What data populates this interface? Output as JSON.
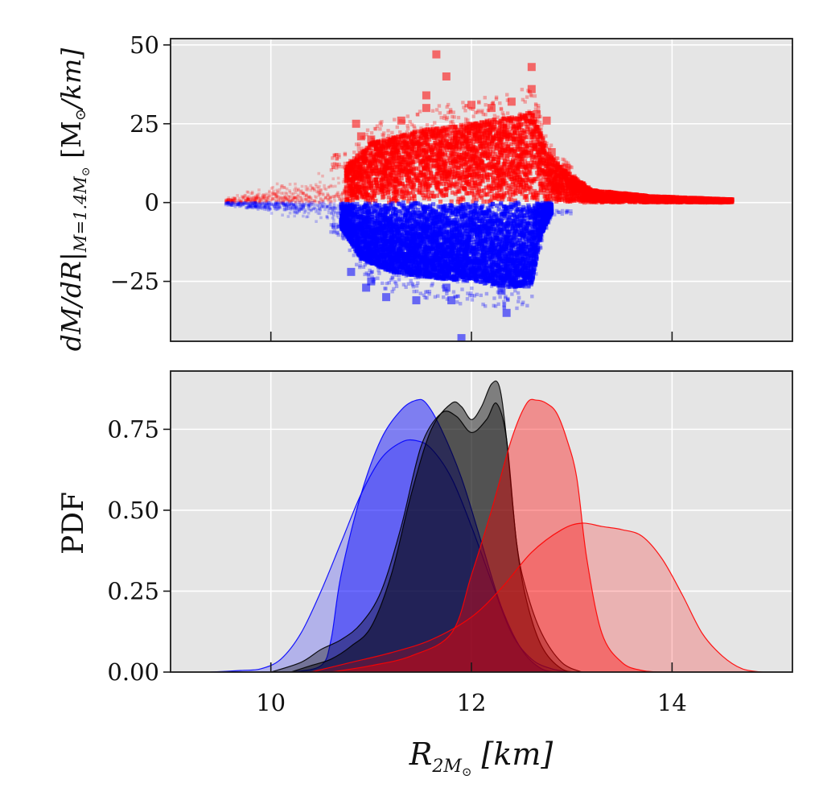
{
  "figure": {
    "panel_bg": "#e5e5e5",
    "red": "#ff0000",
    "blue": "#0000ff",
    "black": "#000000"
  },
  "chart_data": [
    {
      "type": "scatter",
      "title": "",
      "xlabel": "",
      "ylabel_main": "dM/dR",
      "ylabel_sub": "M=1.4M",
      "ylabel_unit": "[M",
      "ylabel_unit_tail": "/km]",
      "xlim": [
        9.0,
        15.2
      ],
      "ylim": [
        -44,
        52
      ],
      "xticks": [
        10,
        12,
        14
      ],
      "yticks": [
        -25,
        0,
        25,
        50
      ],
      "ytick_labels": [
        "−25",
        "0",
        "25",
        "50"
      ],
      "grid": true,
      "series": [
        {
          "color": "#ff0000",
          "core_band": [
            {
              "x": 10.75,
              "y_max": 12
            },
            {
              "x": 11.0,
              "y_max": 19
            },
            {
              "x": 11.5,
              "y_max": 23
            },
            {
              "x": 12.0,
              "y_max": 25
            },
            {
              "x": 12.5,
              "y_max": 28
            },
            {
              "x": 12.6,
              "y_max": 29
            },
            {
              "x": 12.8,
              "y_max": 14
            },
            {
              "x": 13.2,
              "y_max": 4
            },
            {
              "x": 13.8,
              "y_max": 2
            },
            {
              "x": 14.6,
              "y_max": 1
            }
          ],
          "outliers": [
            {
              "x": 10.85,
              "y": 25
            },
            {
              "x": 11.0,
              "y": 20
            },
            {
              "x": 11.3,
              "y": 26
            },
            {
              "x": 11.55,
              "y": 34
            },
            {
              "x": 11.65,
              "y": 47
            },
            {
              "x": 11.75,
              "y": 40
            },
            {
              "x": 11.55,
              "y": 30
            },
            {
              "x": 12.0,
              "y": 31
            },
            {
              "x": 12.2,
              "y": 30
            },
            {
              "x": 12.4,
              "y": 32
            },
            {
              "x": 12.6,
              "y": 43
            },
            {
              "x": 12.6,
              "y": 36
            },
            {
              "x": 12.65,
              "y": 28
            },
            {
              "x": 12.75,
              "y": 26
            },
            {
              "x": 10.9,
              "y": 21
            },
            {
              "x": 12.8,
              "y": 16
            },
            {
              "x": 12.95,
              "y": 11
            }
          ]
        },
        {
          "color": "#0000ff",
          "core_band": [
            {
              "x": 10.7,
              "y_min": -8
            },
            {
              "x": 10.9,
              "y_min": -18
            },
            {
              "x": 11.2,
              "y_min": -22
            },
            {
              "x": 11.6,
              "y_min": -24
            },
            {
              "x": 12.0,
              "y_min": -25
            },
            {
              "x": 12.4,
              "y_min": -27
            },
            {
              "x": 12.6,
              "y_min": -26
            },
            {
              "x": 12.7,
              "y_min": -10
            },
            {
              "x": 12.8,
              "y_min": -3
            }
          ],
          "outliers": [
            {
              "x": 10.8,
              "y": -22
            },
            {
              "x": 11.0,
              "y": -25
            },
            {
              "x": 11.15,
              "y": -30
            },
            {
              "x": 11.45,
              "y": -31
            },
            {
              "x": 11.75,
              "y": -27
            },
            {
              "x": 11.8,
              "y": -31
            },
            {
              "x": 11.9,
              "y": -43
            },
            {
              "x": 12.35,
              "y": -35
            },
            {
              "x": 12.3,
              "y": -28
            },
            {
              "x": 12.55,
              "y": -26
            },
            {
              "x": 10.95,
              "y": -27
            }
          ]
        }
      ]
    },
    {
      "type": "area",
      "title": "",
      "xlabel_main": "R",
      "xlabel_sub": "2M",
      "xlabel_unit": "[km]",
      "ylabel": "PDF",
      "xlim": [
        9.0,
        15.2
      ],
      "ylim": [
        0.0,
        0.93
      ],
      "xticks": [
        10,
        12,
        14
      ],
      "yticks": [
        0.0,
        0.25,
        0.5,
        0.75
      ],
      "ytick_labels": [
        "0.00",
        "0.25",
        "0.50",
        "0.75"
      ],
      "grid": true,
      "series": [
        {
          "color": "#0000ff",
          "fill_opacity": 0.22,
          "x": [
            9.4,
            9.7,
            9.9,
            10.1,
            10.3,
            10.5,
            10.7,
            10.9,
            11.1,
            11.3,
            11.45,
            11.6,
            11.8,
            12.0,
            12.2,
            12.4,
            12.6,
            12.8,
            13.0
          ],
          "y": [
            0.0,
            0.005,
            0.01,
            0.04,
            0.12,
            0.25,
            0.4,
            0.55,
            0.66,
            0.71,
            0.715,
            0.69,
            0.6,
            0.45,
            0.28,
            0.12,
            0.04,
            0.01,
            0.0
          ]
        },
        {
          "color": "#0000ff",
          "fill_opacity": 0.45,
          "x": [
            10.2,
            10.5,
            10.6,
            10.7,
            10.9,
            11.1,
            11.3,
            11.45,
            11.55,
            11.7,
            11.9,
            12.1,
            12.3,
            12.5,
            12.7,
            12.9
          ],
          "y": [
            0.0,
            0.02,
            0.1,
            0.3,
            0.55,
            0.72,
            0.81,
            0.84,
            0.83,
            0.75,
            0.6,
            0.4,
            0.2,
            0.07,
            0.01,
            0.0
          ]
        },
        {
          "color": "#000000",
          "fill_opacity": 0.35,
          "x": [
            10.0,
            10.3,
            10.5,
            10.7,
            10.9,
            11.1,
            11.3,
            11.5,
            11.7,
            11.85,
            12.0,
            12.15,
            12.25,
            12.35,
            12.45,
            12.55,
            12.7,
            12.9,
            13.1
          ],
          "y": [
            0.0,
            0.03,
            0.07,
            0.1,
            0.15,
            0.25,
            0.45,
            0.7,
            0.8,
            0.79,
            0.74,
            0.78,
            0.83,
            0.72,
            0.4,
            0.25,
            0.12,
            0.03,
            0.0
          ]
        },
        {
          "color": "#000000",
          "fill_opacity": 0.45,
          "x": [
            10.2,
            10.4,
            10.6,
            10.8,
            11.0,
            11.2,
            11.4,
            11.6,
            11.8,
            11.9,
            12.0,
            12.1,
            12.2,
            12.28,
            12.35,
            12.45,
            12.55,
            12.7,
            12.9,
            13.1
          ],
          "y": [
            0.0,
            0.02,
            0.04,
            0.08,
            0.14,
            0.3,
            0.55,
            0.75,
            0.83,
            0.82,
            0.78,
            0.82,
            0.89,
            0.88,
            0.72,
            0.4,
            0.22,
            0.08,
            0.01,
            0.0
          ]
        },
        {
          "color": "#ff0000",
          "fill_opacity": 0.22,
          "x": [
            10.4,
            10.8,
            11.2,
            11.6,
            12.0,
            12.3,
            12.6,
            12.9,
            13.1,
            13.3,
            13.5,
            13.7,
            13.9,
            14.1,
            14.3,
            14.5,
            14.7,
            14.9
          ],
          "y": [
            0.0,
            0.03,
            0.06,
            0.1,
            0.17,
            0.26,
            0.37,
            0.44,
            0.46,
            0.45,
            0.44,
            0.42,
            0.35,
            0.24,
            0.12,
            0.05,
            0.01,
            0.0
          ]
        },
        {
          "color": "#ff0000",
          "fill_opacity": 0.38,
          "x": [
            10.6,
            11.0,
            11.4,
            11.8,
            12.0,
            12.2,
            12.4,
            12.55,
            12.65,
            12.75,
            12.85,
            12.95,
            13.05,
            13.15,
            13.3,
            13.5,
            13.7,
            13.9
          ],
          "y": [
            0.0,
            0.02,
            0.05,
            0.12,
            0.3,
            0.5,
            0.72,
            0.83,
            0.84,
            0.83,
            0.8,
            0.72,
            0.6,
            0.35,
            0.12,
            0.03,
            0.005,
            0.0
          ]
        }
      ]
    }
  ]
}
